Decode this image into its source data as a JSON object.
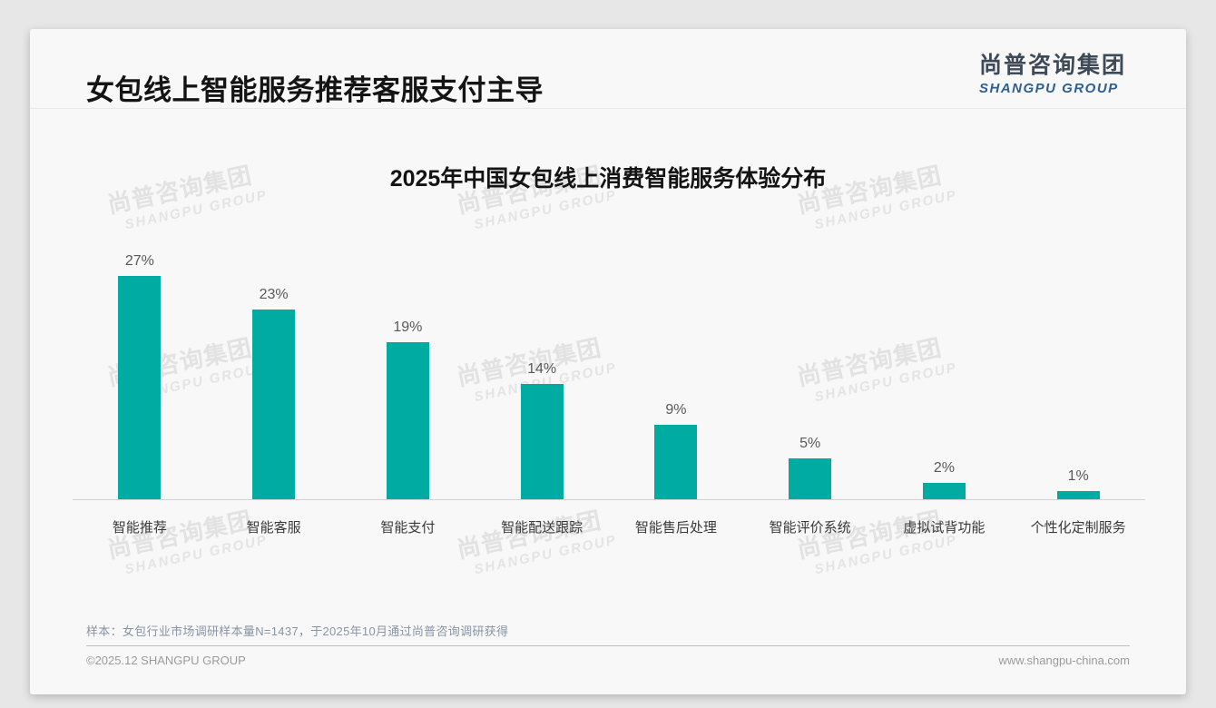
{
  "header": {
    "title": "女包线上智能服务推荐客服支付主导"
  },
  "logo": {
    "cn": "尚普咨询集团",
    "en": "SHANGPU GROUP"
  },
  "watermark": {
    "line1": "尚普咨询集团",
    "line2": "SHANGPU GROUP"
  },
  "chart_data": {
    "type": "bar",
    "title": "2025年中国女包线上消费智能服务体验分布",
    "categories": [
      "智能推荐",
      "智能客服",
      "智能支付",
      "智能配送跟踪",
      "智能售后处理",
      "智能评价系统",
      "虚拟试背功能",
      "个性化定制服务"
    ],
    "values": [
      27,
      23,
      19,
      14,
      9,
      5,
      2,
      1
    ],
    "value_labels": [
      "27%",
      "23%",
      "19%",
      "14%",
      "9%",
      "5%",
      "2%",
      "1%"
    ],
    "unit": "%",
    "xlabel": "",
    "ylabel": "",
    "ylim": [
      0,
      30
    ],
    "grid": false,
    "legend": false,
    "bar_color": "#00ACA2"
  },
  "note": {
    "text": "样本：女包行业市场调研样本量N=1437，于2025年10月通过尚普咨询调研获得"
  },
  "footer": {
    "left": "©2025.12 SHANGPU GROUP",
    "right": "www.shangpu-china.com"
  },
  "colors": {
    "bar": "#00ACA2",
    "logo_blue": "#2d5f94",
    "card_bg": "#f8f8f8",
    "page_bg": "#e7e7e7"
  }
}
